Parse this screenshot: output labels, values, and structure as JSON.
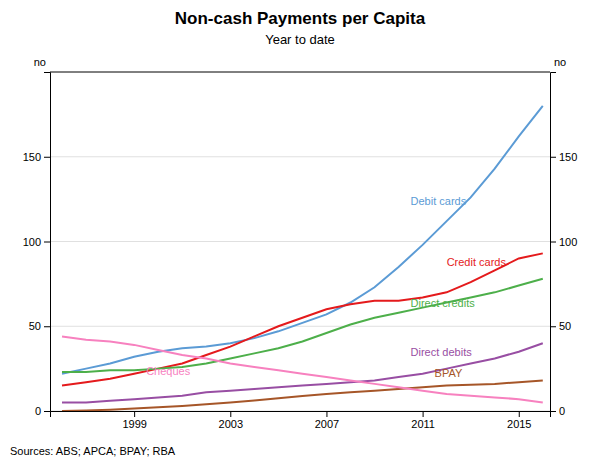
{
  "chart_data": {
    "type": "line",
    "title": "Non-cash Payments per Capita",
    "subtitle": "Year to date",
    "ylabel": "no",
    "y2label": "no",
    "source": "Sources:  ABS; APCA; BPAY; RBA",
    "x": [
      1996,
      1997,
      1998,
      1999,
      2000,
      2001,
      2002,
      2003,
      2004,
      2005,
      2006,
      2007,
      2008,
      2009,
      2010,
      2011,
      2012,
      2013,
      2014,
      2015,
      2016
    ],
    "xlim": [
      1995.5,
      2016.3
    ],
    "xticks": [
      1999,
      2003,
      2007,
      2011,
      2015
    ],
    "ylim": [
      0,
      200
    ],
    "yticks": [
      0,
      50,
      100,
      150
    ],
    "y2lim": [
      0,
      200
    ],
    "y2ticks": [
      0,
      50,
      100,
      150
    ],
    "grid": true,
    "series": [
      {
        "name": "Debit cards",
        "color": "#5b9bd5",
        "label": {
          "x": 2010.5,
          "y": 123
        },
        "values": [
          22,
          25,
          28,
          32,
          35,
          37,
          38,
          40,
          43,
          47,
          52,
          57,
          64,
          73,
          85,
          98,
          112,
          126,
          143,
          162,
          180
        ]
      },
      {
        "name": "Credit cards",
        "color": "#e41a1c",
        "label": {
          "x": 2012.0,
          "y": 87
        },
        "values": [
          15,
          17,
          19,
          22,
          25,
          28,
          33,
          38,
          44,
          50,
          55,
          60,
          63,
          65,
          65,
          67,
          70,
          76,
          83,
          90,
          93
        ]
      },
      {
        "name": "Direct credits",
        "color": "#4daf4a",
        "label": {
          "x": 2010.5,
          "y": 63
        },
        "values": [
          23,
          23,
          24,
          24,
          25,
          26,
          28,
          31,
          34,
          37,
          41,
          46,
          51,
          55,
          58,
          61,
          64,
          67,
          70,
          74,
          78
        ]
      },
      {
        "name": "Direct debits",
        "color": "#984ea3",
        "label": {
          "x": 2010.5,
          "y": 34
        },
        "values": [
          5,
          5,
          6,
          7,
          8,
          9,
          11,
          12,
          13,
          14,
          15,
          16,
          17,
          18,
          20,
          22,
          25,
          28,
          31,
          35,
          40
        ]
      },
      {
        "name": "BPAY",
        "color": "#a65628",
        "label": {
          "x": 2011.5,
          "y": 22
        },
        "values": [
          0,
          0.3,
          0.8,
          1.5,
          2.2,
          3.0,
          4.0,
          5.0,
          6.2,
          7.5,
          8.8,
          10,
          11,
          12,
          13,
          14,
          15,
          15.5,
          16,
          17,
          18
        ]
      },
      {
        "name": "Cheques",
        "color": "#f781bf",
        "label": {
          "x": 1999.5,
          "y": 23
        },
        "values": [
          44,
          42,
          41,
          39,
          36,
          33,
          31,
          28,
          26,
          24,
          22,
          20,
          18,
          16,
          14,
          12,
          10,
          9,
          8,
          7,
          5
        ]
      }
    ]
  }
}
